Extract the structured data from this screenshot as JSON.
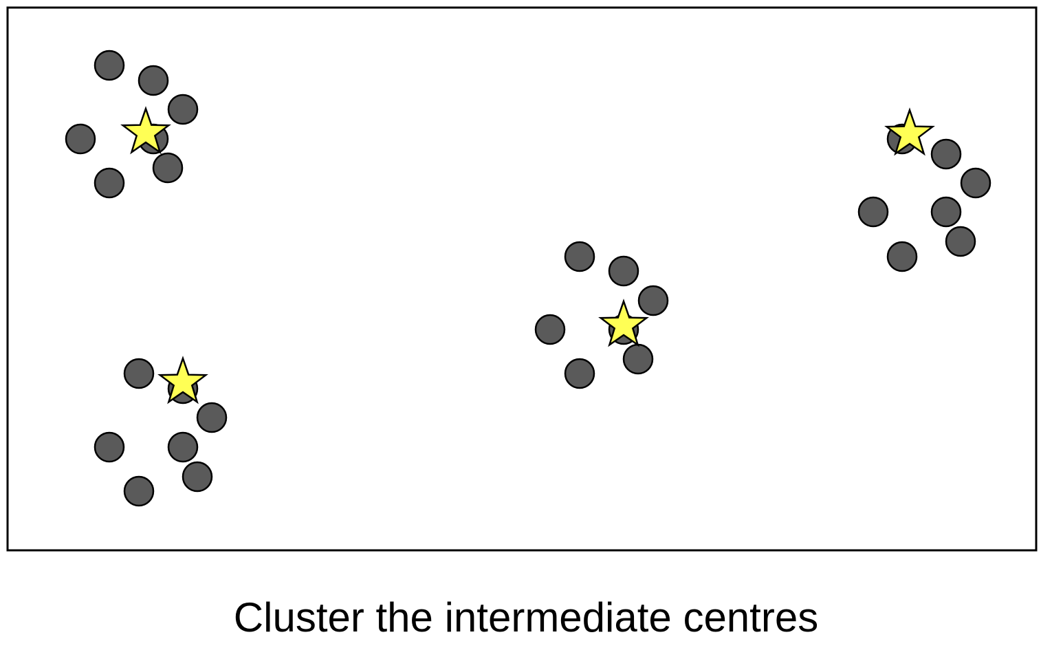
{
  "caption": "Cluster the intermediate centres",
  "colors": {
    "point_fill": "#5a5a5a",
    "point_stroke": "#000000",
    "star_fill": "#ffff55",
    "star_stroke": "#000000",
    "frame_stroke": "#000000",
    "background": "#ffffff"
  },
  "clusters": [
    {
      "name": "top-left",
      "points": [
        [
          159,
          95
        ],
        [
          223,
          117
        ],
        [
          266,
          159
        ],
        [
          117,
          202
        ],
        [
          223,
          202
        ],
        [
          244,
          244
        ],
        [
          159,
          266
        ]
      ],
      "centre": [
        212,
        193
      ]
    },
    {
      "name": "bottom-left",
      "points": [
        [
          202,
          543
        ],
        [
          266,
          565
        ],
        [
          308,
          607
        ],
        [
          159,
          650
        ],
        [
          266,
          650
        ],
        [
          287,
          693
        ],
        [
          202,
          714
        ]
      ],
      "centre": [
        266,
        556
      ]
    },
    {
      "name": "middle",
      "points": [
        [
          843,
          373
        ],
        [
          907,
          394
        ],
        [
          950,
          437
        ],
        [
          800,
          479
        ],
        [
          907,
          479
        ],
        [
          928,
          522
        ],
        [
          843,
          543
        ]
      ],
      "centre": [
        907,
        473
      ]
    },
    {
      "name": "top-right",
      "points": [
        [
          1312,
          202
        ],
        [
          1376,
          224
        ],
        [
          1419,
          266
        ],
        [
          1270,
          308
        ],
        [
          1376,
          308
        ],
        [
          1397,
          351
        ],
        [
          1312,
          373
        ]
      ],
      "centre": [
        1323,
        195
      ]
    }
  ]
}
